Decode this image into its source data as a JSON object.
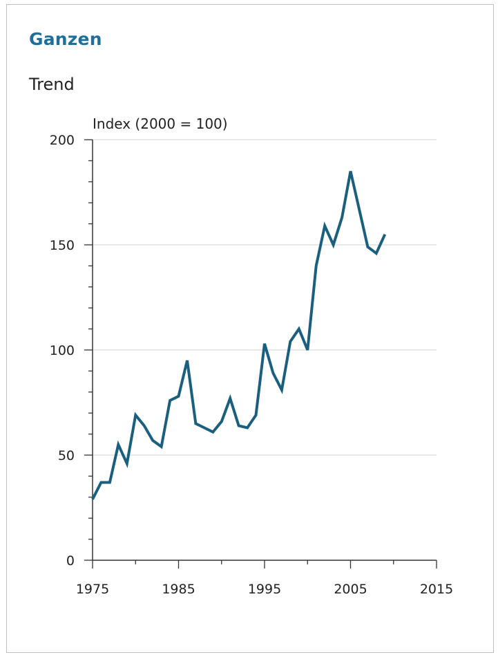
{
  "page": {
    "title": "Ganzen",
    "subtitle": "Trend"
  },
  "chart_data": {
    "type": "line",
    "ylabel": "Index (2000 = 100)",
    "xlabel": "",
    "xlim": [
      1975,
      2015
    ],
    "ylim": [
      0,
      200
    ],
    "xticks": [
      1975,
      1985,
      1995,
      2005,
      2015
    ],
    "yticks": [
      0,
      50,
      100,
      150,
      200
    ],
    "grid": "horizontal",
    "series": [
      {
        "color": "#1b5f7e",
        "x": [
          1975,
          1976,
          1977,
          1978,
          1979,
          1980,
          1981,
          1982,
          1983,
          1984,
          1985,
          1986,
          1987,
          1988,
          1989,
          1990,
          1991,
          1992,
          1993,
          1994,
          1995,
          1996,
          1997,
          1998,
          1999,
          2000,
          2001,
          2002,
          2003,
          2004,
          2005,
          2006,
          2007,
          2008,
          2009
        ],
        "y": [
          29,
          37,
          37,
          55,
          46,
          69,
          64,
          57,
          54,
          76,
          78,
          95,
          65,
          63,
          61,
          66,
          77,
          64,
          63,
          69,
          103,
          89,
          81,
          104,
          110,
          100,
          140,
          159,
          150,
          163,
          185,
          167,
          149,
          146,
          155
        ]
      }
    ]
  }
}
